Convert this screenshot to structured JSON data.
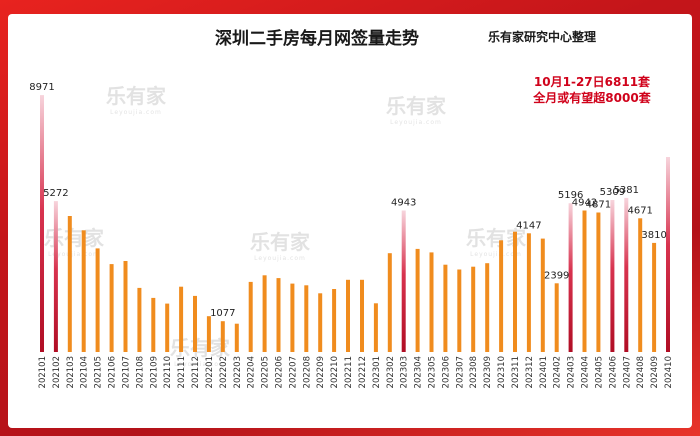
{
  "header": {
    "title": "深圳二手房每月网签量走势",
    "source": "乐有家研究中心整理"
  },
  "watermark": {
    "brand": "乐有家",
    "domain": "Leyoujia.com"
  },
  "annotation": {
    "line1": "10月1-27日6811套",
    "line2": "全月或有望超8000套"
  },
  "colors": {
    "orange": "#f08c1e",
    "red": "#c8102e",
    "annotation": "#d0021b"
  },
  "chart_data": {
    "type": "bar",
    "title": "深圳二手房每月网签量走势",
    "categories": [
      "202101",
      "202102",
      "202103",
      "202104",
      "202105",
      "202106",
      "202107",
      "202108",
      "202109",
      "202110",
      "202111",
      "202112",
      "202201",
      "202202",
      "202203",
      "202204",
      "202205",
      "202206",
      "202207",
      "202208",
      "202209",
      "202210",
      "202211",
      "202212",
      "202301",
      "202302",
      "202303",
      "202304",
      "202305",
      "202306",
      "202307",
      "202308",
      "202309",
      "202310",
      "202311",
      "202312",
      "202401",
      "202402",
      "202403",
      "202404",
      "202405",
      "202406",
      "202407",
      "202408",
      "202409",
      "202410"
    ],
    "values": [
      8971,
      5272,
      4750,
      4250,
      3620,
      3070,
      3180,
      2240,
      1890,
      1690,
      2280,
      1960,
      1250,
      1077,
      990,
      2450,
      2680,
      2580,
      2390,
      2330,
      2050,
      2200,
      2520,
      2520,
      1700,
      3450,
      4943,
      3600,
      3480,
      3050,
      2880,
      2980,
      3100,
      3900,
      4200,
      4147,
      3960,
      2399,
      5196,
      4942,
      4871,
      5309,
      5381,
      4671,
      3810,
      6811
    ],
    "highlighted": [
      "202101",
      "202102",
      "202303",
      "202403",
      "202406",
      "202407",
      "202410"
    ],
    "value_labels": {
      "202101": "8971",
      "202102": "5272",
      "202202": "1077",
      "202303": "4943",
      "202312": "4147",
      "202402": "2399",
      "202403": "5196",
      "202404": "4942",
      "202405": "4871",
      "202406": "5309",
      "202407": "5381",
      "202408": "4671",
      "202409": "3810"
    },
    "ylim": [
      0,
      10000
    ],
    "grid": false,
    "legend": "none"
  }
}
